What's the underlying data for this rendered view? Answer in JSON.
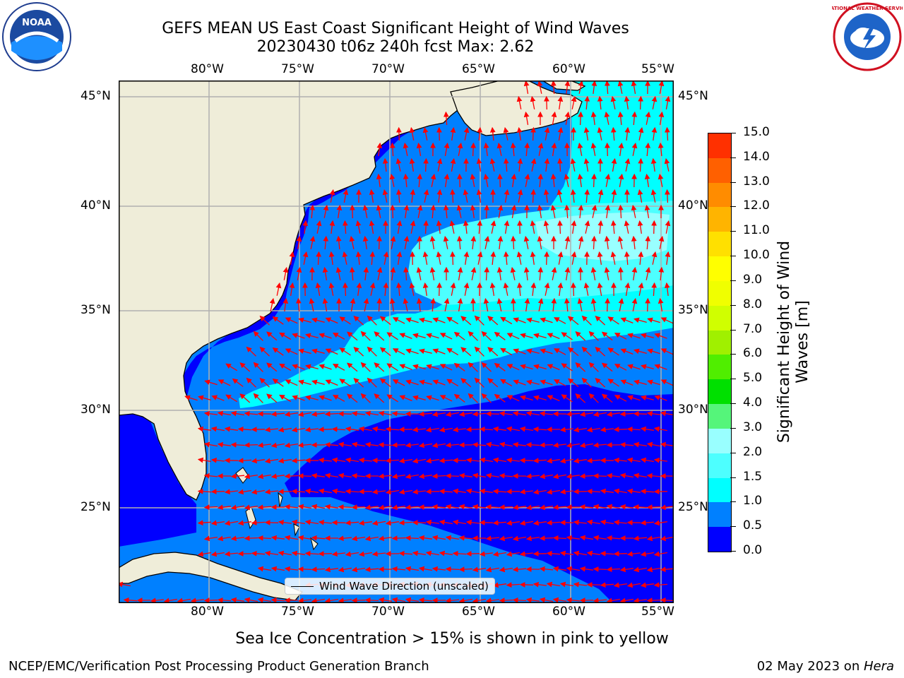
{
  "header": {
    "title_line1": "GEFS MEAN US East Coast Significant Height of Wind Waves",
    "title_line2": "20230430 t06z 240h fcst   Max: 2.62"
  },
  "logos": {
    "left": {
      "icon": "noaa-logo",
      "text": "NOAA"
    },
    "right": {
      "icon": "nws-logo",
      "text": "NATIONAL WEATHER SERVICE"
    }
  },
  "map": {
    "lon_labels": [
      "80°W",
      "75°W",
      "70°W",
      "65°W",
      "60°W",
      "55°W"
    ],
    "lat_labels": [
      "45°N",
      "40°N",
      "35°N",
      "30°N",
      "25°N"
    ],
    "land_color": "#efedd9",
    "arrow_color": "#ff0000",
    "legend_label": "Wind Wave Direction (unscaled)"
  },
  "colorbar": {
    "title": "Significant Height of Wind Waves [m]",
    "title_line1": "Significant Height of Wind",
    "title_line2": "Waves [m]",
    "ticks": [
      "15.0",
      "14.0",
      "13.0",
      "12.0",
      "11.0",
      "10.0",
      "9.0",
      "8.0",
      "7.0",
      "6.0",
      "5.0",
      "4.0",
      "3.0",
      "2.0",
      "1.5",
      "1.0",
      "0.5",
      "0.0"
    ],
    "colors": [
      "#0000ff",
      "#0080ff",
      "#00ffff",
      "#4dffff",
      "#99ffff",
      "#55f57a",
      "#00e000",
      "#50ee00",
      "#a0f000",
      "#d0ff00",
      "#f0ff00",
      "#ffff00",
      "#ffe000",
      "#ffb400",
      "#ff8c00",
      "#ff6000",
      "#ff3000",
      "#ff0000"
    ]
  },
  "subtitle": "Sea Ice Concentration > 15% is shown in pink to yellow",
  "footer": {
    "left": "NCEP/EMC/Verification Post Processing Product Generation Branch",
    "date": "02 May 2023 on ",
    "machine": "Hera"
  }
}
